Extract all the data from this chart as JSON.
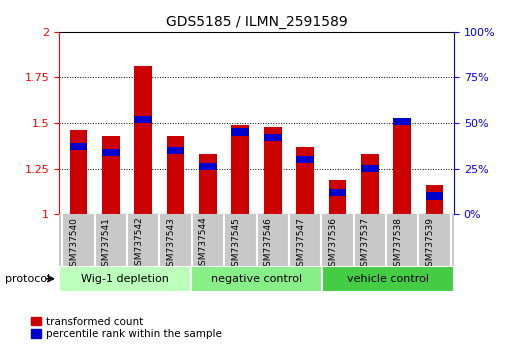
{
  "title": "GDS5185 / ILMN_2591589",
  "samples": [
    "GSM737540",
    "GSM737541",
    "GSM737542",
    "GSM737543",
    "GSM737544",
    "GSM737545",
    "GSM737546",
    "GSM737547",
    "GSM737536",
    "GSM737537",
    "GSM737538",
    "GSM737539"
  ],
  "red_values": [
    1.46,
    1.43,
    1.81,
    1.43,
    1.33,
    1.49,
    1.48,
    1.37,
    1.19,
    1.33,
    1.52,
    1.16
  ],
  "blue_bottoms": [
    1.35,
    1.32,
    1.5,
    1.33,
    1.24,
    1.43,
    1.4,
    1.28,
    1.1,
    1.23,
    1.49,
    1.08
  ],
  "blue_heights": [
    0.04,
    0.04,
    0.04,
    0.04,
    0.04,
    0.04,
    0.04,
    0.04,
    0.04,
    0.04,
    0.04,
    0.04
  ],
  "group_labels": [
    "Wig-1 depletion",
    "negative control",
    "vehicle control"
  ],
  "group_starts": [
    0,
    4,
    8
  ],
  "group_ends": [
    4,
    8,
    12
  ],
  "group_colors": [
    "#bbffbb",
    "#88ee88",
    "#44cc44"
  ],
  "ylim_left": [
    1.0,
    2.0
  ],
  "yticks_left": [
    1.0,
    1.25,
    1.5,
    1.75,
    2.0
  ],
  "ytick_labels_left": [
    "1",
    "1.25",
    "1.5",
    "1.75",
    "2"
  ],
  "yticks_right": [
    0,
    25,
    50,
    75,
    100
  ],
  "ytick_labels_right": [
    "0%",
    "25%",
    "50%",
    "75%",
    "100%"
  ],
  "bar_color": "#cc0000",
  "blue_color": "#0000cc",
  "bar_width": 0.55,
  "bg_color": "#ffffff",
  "label_bg_color": "#c8c8c8",
  "protocol_label": "protocol",
  "legend_red": "transformed count",
  "legend_blue": "percentile rank within the sample"
}
